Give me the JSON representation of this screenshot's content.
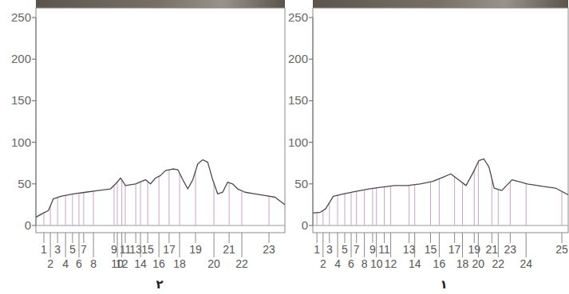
{
  "chart_data": [
    {
      "type": "line",
      "title": "٢",
      "series": [
        {
          "color": "#4a4a4a",
          "x": [
            0,
            3,
            5,
            7,
            10,
            15,
            20,
            25,
            30,
            32,
            34,
            36,
            40,
            44,
            46,
            48,
            50,
            52,
            55,
            57,
            59,
            61,
            63,
            65,
            67,
            69,
            71,
            73,
            75,
            77,
            79,
            81,
            84,
            88,
            92,
            96,
            100
          ],
          "values": [
            10,
            15,
            18,
            32,
            35,
            38,
            40,
            42,
            44,
            50,
            57,
            48,
            50,
            55,
            50,
            57,
            60,
            66,
            68,
            67,
            55,
            44,
            55,
            74,
            79,
            76,
            55,
            38,
            40,
            52,
            50,
            44,
            40,
            38,
            36,
            34,
            25
          ]
        }
      ],
      "xlim": [
        0,
        100
      ],
      "ylim": [
        0,
        250
      ],
      "yticks": [
        0,
        50,
        100,
        150,
        200,
        250
      ],
      "tick_labels": "y",
      "peaks": {
        "labels": [
          1,
          2,
          3,
          4,
          5,
          6,
          7,
          8,
          9,
          10,
          11,
          12,
          13,
          14,
          15,
          16,
          17,
          18,
          19,
          20,
          21,
          22,
          23
        ],
        "x": [
          3.2,
          5.8,
          8.7,
          11.9,
          14.7,
          17.3,
          19.2,
          23.1,
          31.4,
          32.7,
          35.9,
          34.5,
          40.1,
          42.0,
          44.9,
          49.4,
          53.5,
          57.7,
          64.1,
          71.5,
          77.6,
          82.7,
          93.6
        ]
      }
    },
    {
      "type": "line",
      "title": "١",
      "series": [
        {
          "color": "#4a4a4a",
          "x": [
            0,
            3,
            5,
            8,
            12,
            17,
            22,
            27,
            32,
            37,
            42,
            47,
            51,
            54,
            57,
            60,
            63,
            65,
            67,
            69,
            71,
            74,
            78,
            84,
            90,
            95,
            100
          ],
          "values": [
            15,
            16,
            20,
            35,
            38,
            41,
            44,
            46,
            48,
            48,
            50,
            53,
            58,
            62,
            55,
            48,
            65,
            78,
            80,
            70,
            45,
            42,
            55,
            50,
            47,
            45,
            37
          ]
        }
      ],
      "xlim": [
        0,
        100
      ],
      "ylim": [
        0,
        250
      ],
      "yticks": [
        0,
        50,
        100,
        150,
        200,
        250
      ],
      "tick_labels": "y",
      "peaks": {
        "labels": [
          1,
          2,
          3,
          4,
          5,
          6,
          7,
          8,
          9,
          10,
          11,
          12,
          13,
          14,
          15,
          16,
          17,
          18,
          19,
          20,
          21,
          22,
          23,
          24,
          25
        ],
        "x": [
          1.6,
          4.0,
          6.5,
          9.7,
          12.5,
          15.0,
          17.1,
          20.2,
          23.4,
          24.9,
          28.0,
          30.5,
          37.7,
          39.9,
          46.1,
          49.5,
          55.5,
          58.6,
          63.2,
          64.8,
          70.1,
          72.6,
          77.3,
          83.5,
          97.5
        ]
      }
    }
  ]
}
